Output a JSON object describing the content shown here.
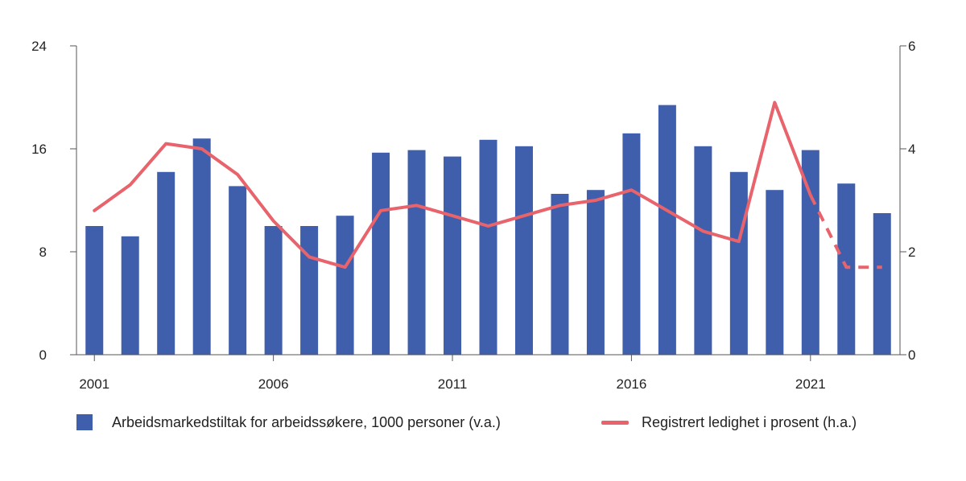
{
  "chart_data": {
    "type": "bar",
    "x": [
      2001,
      2002,
      2003,
      2004,
      2005,
      2006,
      2007,
      2008,
      2009,
      2010,
      2011,
      2012,
      2013,
      2014,
      2015,
      2016,
      2017,
      2018,
      2019,
      2020,
      2021,
      2022,
      2023
    ],
    "x_tick_labels": [
      "2001",
      "2006",
      "2011",
      "2016",
      "2021"
    ],
    "y_left": {
      "ylim": [
        0,
        24
      ],
      "ticks": [
        "0",
        "8",
        "16",
        "24"
      ]
    },
    "y_right": {
      "ylim": [
        0,
        6
      ],
      "ticks": [
        "0",
        "2",
        "4",
        "6"
      ]
    },
    "series": [
      {
        "name": "Arbeidsmarkedstiltak for arbeidssøkere, 1000 personer (v.a.)",
        "type": "bar",
        "axis": "left",
        "color": "#3f5eab",
        "values": [
          10.0,
          9.2,
          14.2,
          16.8,
          13.1,
          10.0,
          10.0,
          10.8,
          15.7,
          15.9,
          15.4,
          16.7,
          16.2,
          12.5,
          12.8,
          17.2,
          19.4,
          16.2,
          14.2,
          12.8,
          15.9,
          13.3,
          11.0
        ]
      },
      {
        "name": "Registrert ledighet i prosent (h.a.)",
        "type": "line",
        "axis": "right",
        "color": "#e8636b",
        "values": [
          2.8,
          3.3,
          4.1,
          4.0,
          3.5,
          2.6,
          1.9,
          1.7,
          2.8,
          2.9,
          2.7,
          2.5,
          2.7,
          2.9,
          3.0,
          3.2,
          2.8,
          2.4,
          2.2,
          4.9,
          3.1,
          1.7,
          1.7
        ],
        "dashed_from": 2021
      }
    ],
    "legend_position": "bottom",
    "grid": false
  }
}
